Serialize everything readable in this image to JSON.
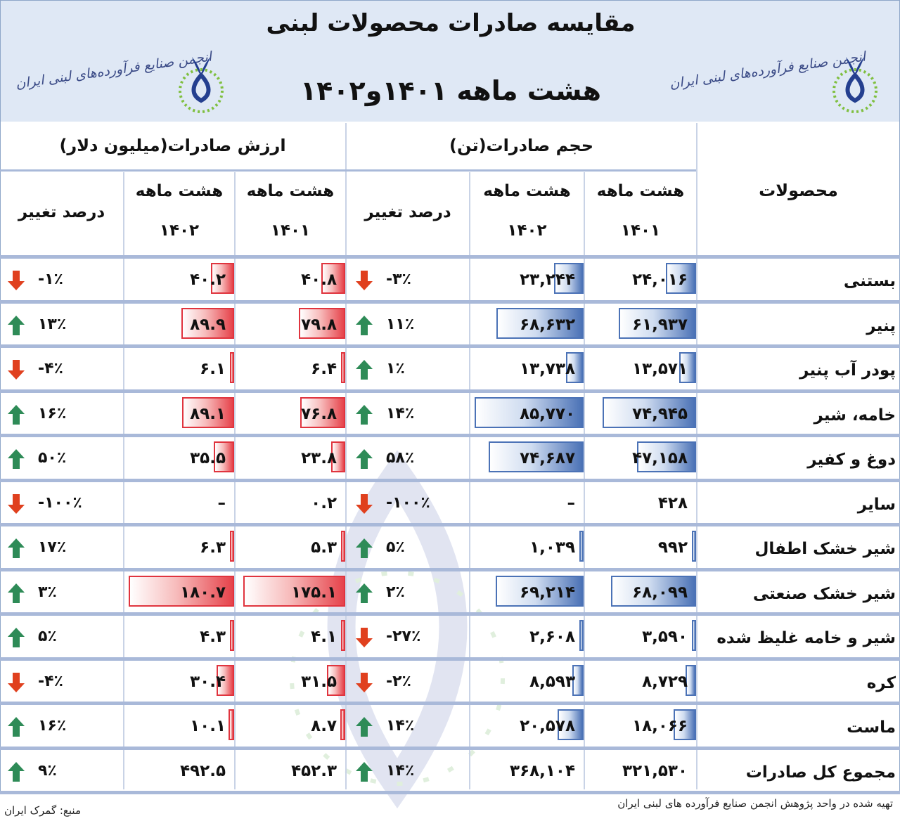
{
  "header": {
    "title": "مقایسه صادرات محصولات لبنی",
    "subtitle": "هشت ماهه ۱۴۰۱و۱۴۰۲",
    "logo_text": "انجمن صنایع فرآورده‌های لبنی ایران"
  },
  "columns": {
    "products": "محصولات",
    "volume_group": "حجم صادرات(تن)",
    "value_group": "ارزش صادرات(میلیون دلار)",
    "period_label": "هشت ماهه",
    "year_1401": "۱۴۰۱",
    "year_1402": "۱۴۰۲",
    "change": "درصد تغییر"
  },
  "rows": [
    {
      "product": "بستنی",
      "vol1401": "۲۴,۰۱۶",
      "vol1401_n": 24016,
      "vol1402": "۲۳,۲۴۴",
      "vol1402_n": 23244,
      "vol_change": "-۳٪",
      "vol_dir": "down",
      "val1401": "۴۰.۸",
      "val1401_n": 40.8,
      "val1402": "۴۰.۲",
      "val1402_n": 40.2,
      "val_change": "-۱٪",
      "val_dir": "down"
    },
    {
      "product": "پنیر",
      "vol1401": "۶۱,۹۳۷",
      "vol1401_n": 61937,
      "vol1402": "۶۸,۶۳۲",
      "vol1402_n": 68632,
      "vol_change": "۱۱٪",
      "vol_dir": "up",
      "val1401": "۷۹.۸",
      "val1401_n": 79.8,
      "val1402": "۸۹.۹",
      "val1402_n": 89.9,
      "val_change": "۱۳٪",
      "val_dir": "up"
    },
    {
      "product": "پودر آب پنیر",
      "vol1401": "۱۳,۵۷۱",
      "vol1401_n": 13571,
      "vol1402": "۱۳,۷۳۸",
      "vol1402_n": 13738,
      "vol_change": "۱٪",
      "vol_dir": "up",
      "val1401": "۶.۴",
      "val1401_n": 6.4,
      "val1402": "۶.۱",
      "val1402_n": 6.1,
      "val_change": "-۴٪",
      "val_dir": "down"
    },
    {
      "product": "خامه، شیر",
      "vol1401": "۷۴,۹۴۵",
      "vol1401_n": 74945,
      "vol1402": "۸۵,۷۷۰",
      "vol1402_n": 85770,
      "vol_change": "۱۴٪",
      "vol_dir": "up",
      "val1401": "۷۶.۸",
      "val1401_n": 76.8,
      "val1402": "۸۹.۱",
      "val1402_n": 89.1,
      "val_change": "۱۶٪",
      "val_dir": "up"
    },
    {
      "product": "دوغ و کفیر",
      "vol1401": "۴۷,۱۵۸",
      "vol1401_n": 47158,
      "vol1402": "۷۴,۶۸۷",
      "vol1402_n": 74687,
      "vol_change": "۵۸٪",
      "vol_dir": "up",
      "val1401": "۲۳.۸",
      "val1401_n": 23.8,
      "val1402": "۳۵.۵",
      "val1402_n": 35.5,
      "val_change": "۵۰٪",
      "val_dir": "up"
    },
    {
      "product": "سایر",
      "vol1401": "۴۲۸",
      "vol1401_n": 0,
      "vol1402": "–",
      "vol1402_n": 0,
      "vol_change": "-۱۰۰٪",
      "vol_dir": "down",
      "val1401": "۰.۲",
      "val1401_n": 0,
      "val1402": "–",
      "val1402_n": 0,
      "val_change": "-۱۰۰٪",
      "val_dir": "down"
    },
    {
      "product": "شیر خشک اطفال",
      "vol1401": "۹۹۲",
      "vol1401_n": 992,
      "vol1402": "۱,۰۳۹",
      "vol1402_n": 1039,
      "vol_change": "۵٪",
      "vol_dir": "up",
      "val1401": "۵.۳",
      "val1401_n": 5.3,
      "val1402": "۶.۳",
      "val1402_n": 6.3,
      "val_change": "۱۷٪",
      "val_dir": "up"
    },
    {
      "product": "شیر خشک صنعتی",
      "vol1401": "۶۸,۰۹۹",
      "vol1401_n": 68099,
      "vol1402": "۶۹,۲۱۴",
      "vol1402_n": 69214,
      "vol_change": "۲٪",
      "vol_dir": "up",
      "val1401": "۱۷۵.۱",
      "val1401_n": 175.1,
      "val1402": "۱۸۰.۷",
      "val1402_n": 180.7,
      "val_change": "۳٪",
      "val_dir": "up"
    },
    {
      "product": "شیر و خامه غلیظ شده",
      "vol1401": "۳,۵۹۰",
      "vol1401_n": 3590,
      "vol1402": "۲,۶۰۸",
      "vol1402_n": 2608,
      "vol_change": "-۲۷٪",
      "vol_dir": "down",
      "val1401": "۴.۱",
      "val1401_n": 4.1,
      "val1402": "۴.۳",
      "val1402_n": 4.3,
      "val_change": "۵٪",
      "val_dir": "up"
    },
    {
      "product": "کره",
      "vol1401": "۸,۷۲۹",
      "vol1401_n": 8729,
      "vol1402": "۸,۵۹۳",
      "vol1402_n": 8593,
      "vol_change": "-۲٪",
      "vol_dir": "down",
      "val1401": "۳۱.۵",
      "val1401_n": 31.5,
      "val1402": "۳۰.۴",
      "val1402_n": 30.4,
      "val_change": "-۴٪",
      "val_dir": "down"
    },
    {
      "product": "ماست",
      "vol1401": "۱۸,۰۶۶",
      "vol1401_n": 18066,
      "vol1402": "۲۰,۵۷۸",
      "vol1402_n": 20578,
      "vol_change": "۱۴٪",
      "vol_dir": "up",
      "val1401": "۸.۷",
      "val1401_n": 8.7,
      "val1402": "۱۰.۱",
      "val1402_n": 10.1,
      "val_change": "۱۶٪",
      "val_dir": "up"
    },
    {
      "product": "مجموع کل صادرات",
      "vol1401": "۳۲۱,۵۳۰",
      "vol1401_n": 0,
      "vol1402": "۳۶۸,۱۰۴",
      "vol1402_n": 0,
      "vol_change": "۱۴٪",
      "vol_dir": "up",
      "val1401": "۴۵۲.۳",
      "val1401_n": 0,
      "val1402": "۴۹۲.۵",
      "val1402_n": 0,
      "val_change": "۹٪",
      "val_dir": "up"
    }
  ],
  "footer": {
    "prepared_by": "تهیه شده در واحد پژوهش انجمن صنایع فرآورده های لبنی ایران",
    "source": "منبع: گمرک ایران"
  },
  "colors": {
    "header_bg": "#dfe8f5",
    "rule": "#a9b9d9",
    "volume_bar": "#4b72b6",
    "value_bar": "#e6434b",
    "arrow_up": "#2e8b57",
    "arrow_down": "#e0401e"
  }
}
